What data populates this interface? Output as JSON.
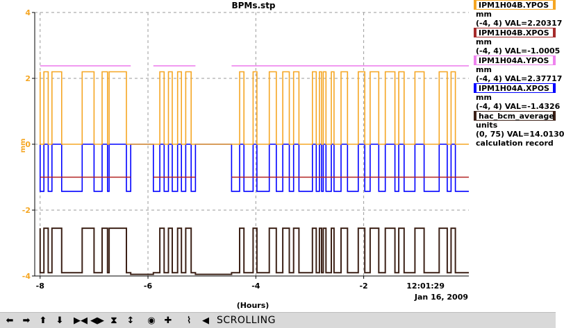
{
  "chart_data": {
    "type": "line",
    "title": "BPMs.stp",
    "xlabel": "(Hours)",
    "ylabel": "mm",
    "xlim": [
      -8.1,
      -0.05
    ],
    "ylim": [
      -4,
      4
    ],
    "x_ticks": [
      "-8",
      "-6",
      "-4",
      "-2"
    ],
    "y_ticks": [
      "4",
      "2",
      "0",
      "-2",
      "-4"
    ],
    "time_label": "12:01:29",
    "date_label": "Jan 16, 2009",
    "grid": true,
    "series": [
      {
        "name": "IPM1H04B.YPOS",
        "color": "#f5a623",
        "high": 2.2,
        "low": 0
      },
      {
        "name": "IPM1H04B.XPOS",
        "color": "#b22222",
        "high": -1.0,
        "low": -1.0
      },
      {
        "name": "IPM1H04A.YPOS",
        "color": "#ee82ee",
        "high": 2.38,
        "low": 2.38
      },
      {
        "name": "IPM1H04A.XPOS",
        "color": "#0000ff",
        "high": 0,
        "low": -1.43
      },
      {
        "name": "hac_bcm_average",
        "color": "#3b2016",
        "high": -2.55,
        "low": -3.9
      }
    ],
    "gaps": [
      [
        -6.2,
        -6.0
      ],
      [
        -5.02,
        -4.55
      ]
    ],
    "switch_times": [
      -8.0,
      -7.93,
      -7.85,
      -7.78,
      -7.6,
      -7.22,
      -7.0,
      -6.85,
      -6.75,
      -6.72,
      -6.4,
      -6.32,
      -5.9,
      -5.78,
      -5.7,
      -5.62,
      -5.55,
      -5.45,
      -5.38,
      -5.3,
      -5.2,
      -5.12,
      -4.45,
      -4.3,
      -4.22,
      -4.05,
      -3.98,
      -3.75,
      -3.62,
      -3.5,
      -3.38,
      -3.3,
      -3.2,
      -2.95,
      -2.88,
      -2.82,
      -2.78,
      -2.75,
      -2.7,
      -2.6,
      -2.55,
      -2.42,
      -2.3,
      -2.1,
      -1.98,
      -1.88,
      -1.72,
      -1.6,
      -1.42,
      -1.35,
      -1.25,
      -1.05,
      -0.88,
      -0.6,
      -0.45,
      -0.38,
      -0.3
    ]
  },
  "legend": [
    {
      "name": "IPM1H04B.YPOS",
      "color": "#f5a623",
      "units": "mm",
      "range": "(-4, 4) VAL=2.20317"
    },
    {
      "name": "IPM1H04B.XPOS",
      "color": "#a52a2a",
      "units": "mm",
      "range": "(-4, 4) VAL=-1.0005"
    },
    {
      "name": "IPM1H04A.YPOS",
      "color": "#ee82ee",
      "units": "mm",
      "range": "(-4, 4) VAL=2.37717"
    },
    {
      "name": "IPM1H04A.XPOS",
      "color": "#0000ff",
      "units": "mm",
      "range": "(-4, 4) VAL=-1.4326"
    },
    {
      "name": "hac_bcm_average",
      "color": "#3b2016",
      "units": "units",
      "range": "(0, 75) VAL=14.0130",
      "note": "calculation record"
    }
  ],
  "toolbar": {
    "status": "SCROLLING",
    "buttons": [
      "left-arrow-icon",
      "right-arrow-icon",
      "up-arrow-icon",
      "down-arrow-icon",
      "expand-horizontal-icon",
      "compress-horizontal-icon",
      "expand-vertical-icon",
      "compress-vertical-icon",
      "record-icon",
      "crosshair-icon",
      "stripchart-icon",
      "undo-icon"
    ]
  }
}
